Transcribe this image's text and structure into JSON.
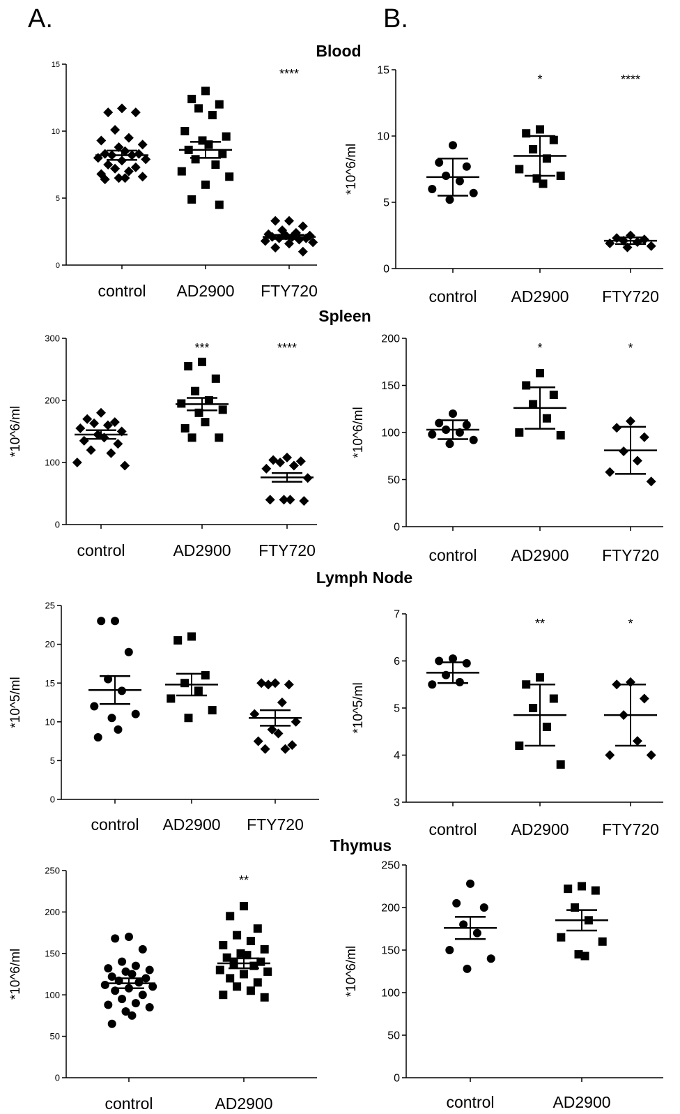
{
  "panels": {
    "a": "A.",
    "b": "B."
  },
  "sections": [
    "Blood",
    "Spleen",
    "Lymph Node",
    "Thymus"
  ],
  "chart_data": [
    {
      "type": "scatter",
      "section": "Blood",
      "panel": "A",
      "ylabel": "",
      "ylim": [
        0,
        15
      ],
      "yticks": [
        0,
        5,
        10,
        15
      ],
      "categories": [
        "control",
        "AD2900",
        "FTY720"
      ],
      "groups": [
        {
          "name": "control",
          "marker": "diamond",
          "mean": 8.2,
          "sem": 0.35,
          "values": [
            11.7,
            11.4,
            11.4,
            10.1,
            9.5,
            9.3,
            9.0,
            8.8,
            8.5,
            8.3,
            8.3,
            8.2,
            8.2,
            8.0,
            7.9,
            7.8,
            7.5,
            7.3,
            7.2,
            7.0,
            6.8,
            6.6,
            6.5,
            6.5,
            6.4
          ]
        },
        {
          "name": "AD2900",
          "marker": "square",
          "mean": 8.6,
          "sem": 0.6,
          "values": [
            13.0,
            12.4,
            12.0,
            11.7,
            11.2,
            10.0,
            9.6,
            9.3,
            9.0,
            8.6,
            8.3,
            7.9,
            7.5,
            7.0,
            6.6,
            6.0,
            4.9,
            4.5
          ]
        },
        {
          "name": "FTY720",
          "marker": "diamond",
          "mean": 2.1,
          "sem": 0.15,
          "values": [
            3.3,
            3.3,
            2.9,
            2.6,
            2.4,
            2.3,
            2.2,
            2.2,
            2.1,
            2.1,
            2.0,
            2.0,
            1.9,
            1.8,
            1.7,
            1.6,
            1.3,
            1.0
          ]
        }
      ],
      "annotations": [
        "",
        "",
        "****"
      ]
    },
    {
      "type": "scatter",
      "section": "Blood",
      "panel": "B",
      "ylabel": "*10^6/ml",
      "ylim": [
        0,
        15
      ],
      "yticks": [
        0,
        5,
        10,
        15
      ],
      "categories": [
        "control",
        "AD2900",
        "FTY720"
      ],
      "groups": [
        {
          "name": "control",
          "marker": "circle",
          "mean": 6.9,
          "sd": 1.4,
          "values": [
            9.3,
            8.0,
            7.7,
            7.0,
            6.6,
            6.0,
            5.7,
            5.2
          ]
        },
        {
          "name": "AD2900",
          "marker": "square",
          "mean": 8.5,
          "sd": 1.5,
          "values": [
            10.5,
            10.2,
            9.7,
            9.0,
            8.3,
            7.5,
            7.0,
            6.8,
            6.4
          ]
        },
        {
          "name": "FTY720",
          "marker": "diamond",
          "mean": 2.1,
          "sd": 0.25,
          "values": [
            2.5,
            2.3,
            2.2,
            2.1,
            2.0,
            1.9,
            1.7,
            1.6
          ]
        }
      ],
      "annotations": [
        "",
        "*",
        "****"
      ]
    },
    {
      "type": "scatter",
      "section": "Spleen",
      "panel": "A",
      "ylabel": "*10^6/ml",
      "ylim": [
        0,
        300
      ],
      "yticks": [
        0,
        100,
        200,
        300
      ],
      "categories": [
        "control",
        "AD2900",
        "FTY720"
      ],
      "groups": [
        {
          "name": "control",
          "marker": "diamond",
          "mean": 145,
          "sem": 7,
          "values": [
            180,
            170,
            165,
            163,
            160,
            155,
            150,
            145,
            140,
            135,
            130,
            120,
            115,
            100,
            95
          ]
        },
        {
          "name": "AD2900",
          "marker": "square",
          "mean": 194,
          "sem": 10,
          "values": [
            262,
            255,
            235,
            215,
            200,
            195,
            185,
            180,
            165,
            155,
            140,
            140
          ]
        },
        {
          "name": "FTY720",
          "marker": "diamond",
          "mean": 76,
          "sem": 7,
          "values": [
            108,
            104,
            102,
            100,
            95,
            90,
            75,
            40,
            40,
            40,
            38
          ]
        }
      ],
      "annotations": [
        "",
        "***",
        "****"
      ]
    },
    {
      "type": "scatter",
      "section": "Spleen",
      "panel": "B",
      "ylabel": "*10^6/ml",
      "ylim": [
        0,
        200
      ],
      "yticks": [
        0,
        50,
        100,
        150,
        200
      ],
      "categories": [
        "control",
        "AD2900",
        "FTY720"
      ],
      "groups": [
        {
          "name": "control",
          "marker": "circle",
          "mean": 103,
          "sd": 10,
          "values": [
            120,
            110,
            108,
            103,
            100,
            98,
            92,
            88
          ]
        },
        {
          "name": "AD2900",
          "marker": "square",
          "mean": 126,
          "sd": 22,
          "values": [
            163,
            150,
            140,
            130,
            115,
            100,
            97
          ]
        },
        {
          "name": "FTY720",
          "marker": "diamond",
          "mean": 81,
          "sd": 25,
          "values": [
            112,
            105,
            95,
            80,
            70,
            58,
            48
          ]
        }
      ],
      "annotations": [
        "",
        "*",
        "*"
      ]
    },
    {
      "type": "scatter",
      "section": "Lymph Node",
      "panel": "A",
      "ylabel": "*10^5/ml",
      "ylim": [
        0,
        25
      ],
      "yticks": [
        0,
        5,
        10,
        15,
        20,
        25
      ],
      "categories": [
        "control",
        "AD2900",
        "FTY720"
      ],
      "groups": [
        {
          "name": "control",
          "marker": "circle",
          "mean": 14.1,
          "sem": 1.8,
          "values": [
            23,
            23,
            19,
            15.5,
            14,
            12,
            11,
            10.5,
            9,
            8
          ]
        },
        {
          "name": "AD2900",
          "marker": "square",
          "mean": 14.8,
          "sem": 1.4,
          "values": [
            21,
            20.5,
            16,
            15,
            14,
            13,
            11.5,
            10.5
          ]
        },
        {
          "name": "FTY720",
          "marker": "diamond",
          "mean": 10.5,
          "sem": 1.0,
          "values": [
            15,
            15,
            14.8,
            14.8,
            12.5,
            11,
            10,
            9,
            8.5,
            7.5,
            7,
            6.5,
            6.5
          ]
        }
      ],
      "annotations": [
        "",
        "",
        ""
      ]
    },
    {
      "type": "scatter",
      "section": "Lymph Node",
      "panel": "B",
      "ylabel": "*10^5/ml",
      "ylim": [
        3,
        7
      ],
      "yticks": [
        3,
        4,
        5,
        6,
        7
      ],
      "categories": [
        "control",
        "AD2900",
        "FTY720"
      ],
      "groups": [
        {
          "name": "control",
          "marker": "circle",
          "mean": 5.75,
          "sd": 0.22,
          "values": [
            6.05,
            6.0,
            5.95,
            5.7,
            5.55,
            5.5
          ]
        },
        {
          "name": "AD2900",
          "marker": "square",
          "mean": 4.85,
          "sd": 0.65,
          "values": [
            5.65,
            5.5,
            5.2,
            5.0,
            4.6,
            4.2,
            3.8
          ]
        },
        {
          "name": "FTY720",
          "marker": "diamond",
          "mean": 4.85,
          "sd": 0.65,
          "values": [
            5.55,
            5.5,
            5.2,
            4.85,
            4.3,
            4.0,
            4.0
          ]
        }
      ],
      "annotations": [
        "",
        "**",
        "*"
      ]
    },
    {
      "type": "scatter",
      "section": "Thymus",
      "panel": "A",
      "ylabel": "*10^6/ml",
      "ylim": [
        0,
        250
      ],
      "yticks": [
        0,
        50,
        100,
        150,
        200,
        250
      ],
      "categories": [
        "control",
        "AD2900"
      ],
      "groups": [
        {
          "name": "control",
          "marker": "circle",
          "mean": 114,
          "sem": 6,
          "values": [
            170,
            168,
            155,
            140,
            135,
            132,
            130,
            128,
            125,
            122,
            120,
            117,
            115,
            112,
            110,
            108,
            105,
            100,
            95,
            90,
            88,
            85,
            80,
            75,
            65
          ]
        },
        {
          "name": "AD2900",
          "marker": "square",
          "mean": 138,
          "sem": 6,
          "values": [
            207,
            195,
            180,
            172,
            165,
            160,
            155,
            150,
            148,
            145,
            140,
            138,
            135,
            130,
            128,
            125,
            120,
            115,
            110,
            105,
            100,
            97
          ]
        }
      ],
      "annotations": [
        "",
        "**"
      ]
    },
    {
      "type": "scatter",
      "section": "Thymus",
      "panel": "B",
      "ylabel": "*10^6/ml",
      "ylim": [
        0,
        250
      ],
      "yticks": [
        0,
        50,
        100,
        150,
        200,
        250
      ],
      "categories": [
        "control",
        "AD2900"
      ],
      "groups": [
        {
          "name": "control",
          "marker": "circle",
          "mean": 176,
          "sd": 13,
          "values": [
            228,
            205,
            200,
            180,
            170,
            150,
            140,
            128
          ]
        },
        {
          "name": "AD2900",
          "marker": "square",
          "mean": 185,
          "sd": 12,
          "values": [
            225,
            222,
            220,
            200,
            185,
            165,
            160,
            145,
            143
          ]
        }
      ],
      "annotations": [
        "",
        ""
      ]
    }
  ]
}
